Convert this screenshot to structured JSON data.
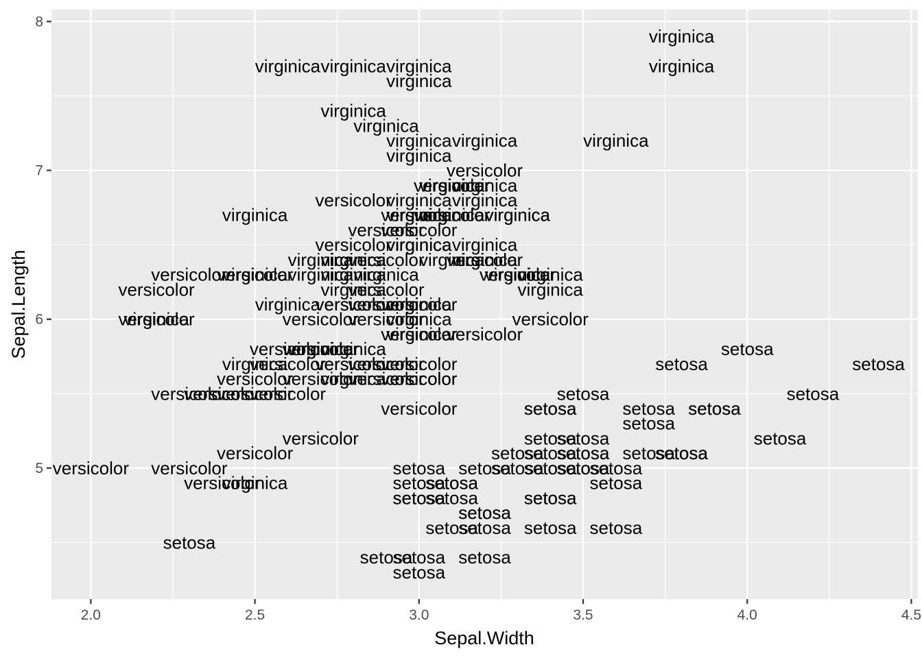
{
  "chart_data": {
    "type": "scatter",
    "title": "",
    "xlabel": "Sepal.Width",
    "ylabel": "Sepal.Length",
    "xlim": [
      1.88,
      4.52
    ],
    "ylim": [
      4.12,
      8.08
    ],
    "x_ticks": [
      2.0,
      2.5,
      3.0,
      3.5,
      4.0,
      4.5
    ],
    "x_tick_labels": [
      "2.0",
      "2.5",
      "3.0",
      "3.5",
      "4.0",
      "4.5"
    ],
    "y_ticks": [
      5,
      6,
      7,
      8
    ],
    "y_tick_labels": [
      "5",
      "6",
      "7",
      "8"
    ],
    "grid": true,
    "legend": "none",
    "marker": "text label",
    "points": [
      {
        "x": 3.5,
        "y": 5.1,
        "label": "setosa"
      },
      {
        "x": 3.0,
        "y": 4.9,
        "label": "setosa"
      },
      {
        "x": 3.2,
        "y": 4.7,
        "label": "setosa"
      },
      {
        "x": 3.1,
        "y": 4.6,
        "label": "setosa"
      },
      {
        "x": 3.6,
        "y": 5.0,
        "label": "setosa"
      },
      {
        "x": 3.9,
        "y": 5.4,
        "label": "setosa"
      },
      {
        "x": 3.4,
        "y": 4.6,
        "label": "setosa"
      },
      {
        "x": 3.4,
        "y": 5.0,
        "label": "setosa"
      },
      {
        "x": 2.9,
        "y": 4.4,
        "label": "setosa"
      },
      {
        "x": 3.1,
        "y": 4.9,
        "label": "setosa"
      },
      {
        "x": 3.7,
        "y": 5.4,
        "label": "setosa"
      },
      {
        "x": 3.4,
        "y": 4.8,
        "label": "setosa"
      },
      {
        "x": 3.0,
        "y": 4.8,
        "label": "setosa"
      },
      {
        "x": 3.0,
        "y": 4.3,
        "label": "setosa"
      },
      {
        "x": 4.0,
        "y": 5.8,
        "label": "setosa"
      },
      {
        "x": 4.4,
        "y": 5.7,
        "label": "setosa"
      },
      {
        "x": 3.9,
        "y": 5.4,
        "label": "setosa"
      },
      {
        "x": 3.5,
        "y": 5.1,
        "label": "setosa"
      },
      {
        "x": 3.8,
        "y": 5.7,
        "label": "setosa"
      },
      {
        "x": 3.8,
        "y": 5.1,
        "label": "setosa"
      },
      {
        "x": 3.4,
        "y": 5.4,
        "label": "setosa"
      },
      {
        "x": 3.7,
        "y": 5.1,
        "label": "setosa"
      },
      {
        "x": 3.6,
        "y": 4.6,
        "label": "setosa"
      },
      {
        "x": 3.3,
        "y": 5.1,
        "label": "setosa"
      },
      {
        "x": 3.4,
        "y": 4.8,
        "label": "setosa"
      },
      {
        "x": 3.0,
        "y": 5.0,
        "label": "setosa"
      },
      {
        "x": 3.4,
        "y": 5.0,
        "label": "setosa"
      },
      {
        "x": 3.5,
        "y": 5.2,
        "label": "setosa"
      },
      {
        "x": 3.4,
        "y": 5.2,
        "label": "setosa"
      },
      {
        "x": 3.2,
        "y": 4.7,
        "label": "setosa"
      },
      {
        "x": 3.1,
        "y": 4.8,
        "label": "setosa"
      },
      {
        "x": 3.4,
        "y": 5.4,
        "label": "setosa"
      },
      {
        "x": 4.1,
        "y": 5.2,
        "label": "setosa"
      },
      {
        "x": 4.2,
        "y": 5.5,
        "label": "setosa"
      },
      {
        "x": 3.1,
        "y": 4.9,
        "label": "setosa"
      },
      {
        "x": 3.2,
        "y": 5.0,
        "label": "setosa"
      },
      {
        "x": 3.5,
        "y": 5.5,
        "label": "setosa"
      },
      {
        "x": 3.6,
        "y": 4.9,
        "label": "setosa"
      },
      {
        "x": 3.0,
        "y": 4.4,
        "label": "setosa"
      },
      {
        "x": 3.4,
        "y": 5.1,
        "label": "setosa"
      },
      {
        "x": 3.5,
        "y": 5.0,
        "label": "setosa"
      },
      {
        "x": 2.3,
        "y": 4.5,
        "label": "setosa"
      },
      {
        "x": 3.2,
        "y": 4.4,
        "label": "setosa"
      },
      {
        "x": 3.5,
        "y": 5.0,
        "label": "setosa"
      },
      {
        "x": 3.8,
        "y": 5.1,
        "label": "setosa"
      },
      {
        "x": 3.0,
        "y": 4.8,
        "label": "setosa"
      },
      {
        "x": 3.8,
        "y": 5.1,
        "label": "setosa"
      },
      {
        "x": 3.2,
        "y": 4.6,
        "label": "setosa"
      },
      {
        "x": 3.7,
        "y": 5.3,
        "label": "setosa"
      },
      {
        "x": 3.3,
        "y": 5.0,
        "label": "setosa"
      },
      {
        "x": 3.2,
        "y": 7.0,
        "label": "versicolor"
      },
      {
        "x": 3.2,
        "y": 6.4,
        "label": "versicolor"
      },
      {
        "x": 3.1,
        "y": 6.9,
        "label": "versicolor"
      },
      {
        "x": 2.3,
        "y": 5.5,
        "label": "versicolor"
      },
      {
        "x": 2.8,
        "y": 6.5,
        "label": "versicolor"
      },
      {
        "x": 2.8,
        "y": 5.7,
        "label": "versicolor"
      },
      {
        "x": 3.3,
        "y": 6.3,
        "label": "versicolor"
      },
      {
        "x": 2.4,
        "y": 4.9,
        "label": "versicolor"
      },
      {
        "x": 2.9,
        "y": 6.6,
        "label": "versicolor"
      },
      {
        "x": 2.7,
        "y": 5.2,
        "label": "versicolor"
      },
      {
        "x": 2.0,
        "y": 5.0,
        "label": "versicolor"
      },
      {
        "x": 3.0,
        "y": 5.9,
        "label": "versicolor"
      },
      {
        "x": 2.2,
        "y": 6.0,
        "label": "versicolor"
      },
      {
        "x": 2.9,
        "y": 6.1,
        "label": "versicolor"
      },
      {
        "x": 2.9,
        "y": 5.6,
        "label": "versicolor"
      },
      {
        "x": 3.1,
        "y": 6.7,
        "label": "versicolor"
      },
      {
        "x": 3.0,
        "y": 5.6,
        "label": "versicolor"
      },
      {
        "x": 2.7,
        "y": 5.8,
        "label": "versicolor"
      },
      {
        "x": 2.2,
        "y": 6.2,
        "label": "versicolor"
      },
      {
        "x": 2.5,
        "y": 5.6,
        "label": "versicolor"
      },
      {
        "x": 3.2,
        "y": 5.9,
        "label": "versicolor"
      },
      {
        "x": 2.8,
        "y": 6.1,
        "label": "versicolor"
      },
      {
        "x": 2.5,
        "y": 6.3,
        "label": "versicolor"
      },
      {
        "x": 2.8,
        "y": 6.1,
        "label": "versicolor"
      },
      {
        "x": 2.9,
        "y": 6.4,
        "label": "versicolor"
      },
      {
        "x": 3.0,
        "y": 6.6,
        "label": "versicolor"
      },
      {
        "x": 2.8,
        "y": 6.8,
        "label": "versicolor"
      },
      {
        "x": 3.0,
        "y": 6.7,
        "label": "versicolor"
      },
      {
        "x": 2.9,
        "y": 6.0,
        "label": "versicolor"
      },
      {
        "x": 2.6,
        "y": 5.7,
        "label": "versicolor"
      },
      {
        "x": 2.4,
        "y": 5.5,
        "label": "versicolor"
      },
      {
        "x": 2.4,
        "y": 5.5,
        "label": "versicolor"
      },
      {
        "x": 2.7,
        "y": 5.8,
        "label": "versicolor"
      },
      {
        "x": 2.7,
        "y": 6.0,
        "label": "versicolor"
      },
      {
        "x": 3.0,
        "y": 5.4,
        "label": "versicolor"
      },
      {
        "x": 3.4,
        "y": 6.0,
        "label": "versicolor"
      },
      {
        "x": 3.1,
        "y": 6.7,
        "label": "versicolor"
      },
      {
        "x": 2.3,
        "y": 6.3,
        "label": "versicolor"
      },
      {
        "x": 3.0,
        "y": 5.6,
        "label": "versicolor"
      },
      {
        "x": 2.5,
        "y": 5.5,
        "label": "versicolor"
      },
      {
        "x": 2.6,
        "y": 5.5,
        "label": "versicolor"
      },
      {
        "x": 3.0,
        "y": 6.1,
        "label": "versicolor"
      },
      {
        "x": 2.6,
        "y": 5.8,
        "label": "versicolor"
      },
      {
        "x": 2.3,
        "y": 5.0,
        "label": "versicolor"
      },
      {
        "x": 2.7,
        "y": 5.6,
        "label": "versicolor"
      },
      {
        "x": 3.0,
        "y": 5.7,
        "label": "versicolor"
      },
      {
        "x": 2.9,
        "y": 5.7,
        "label": "versicolor"
      },
      {
        "x": 2.9,
        "y": 6.2,
        "label": "versicolor"
      },
      {
        "x": 2.5,
        "y": 5.1,
        "label": "versicolor"
      },
      {
        "x": 2.8,
        "y": 5.7,
        "label": "versicolor"
      },
      {
        "x": 3.3,
        "y": 6.3,
        "label": "virginica"
      },
      {
        "x": 2.7,
        "y": 5.8,
        "label": "virginica"
      },
      {
        "x": 3.0,
        "y": 7.1,
        "label": "virginica"
      },
      {
        "x": 2.9,
        "y": 6.3,
        "label": "virginica"
      },
      {
        "x": 3.0,
        "y": 6.5,
        "label": "virginica"
      },
      {
        "x": 3.0,
        "y": 7.6,
        "label": "virginica"
      },
      {
        "x": 2.5,
        "y": 4.9,
        "label": "virginica"
      },
      {
        "x": 2.9,
        "y": 7.3,
        "label": "virginica"
      },
      {
        "x": 2.5,
        "y": 6.7,
        "label": "virginica"
      },
      {
        "x": 3.6,
        "y": 7.2,
        "label": "virginica"
      },
      {
        "x": 3.2,
        "y": 6.5,
        "label": "virginica"
      },
      {
        "x": 2.7,
        "y": 6.4,
        "label": "virginica"
      },
      {
        "x": 3.0,
        "y": 6.8,
        "label": "virginica"
      },
      {
        "x": 2.5,
        "y": 5.7,
        "label": "virginica"
      },
      {
        "x": 2.8,
        "y": 5.8,
        "label": "virginica"
      },
      {
        "x": 3.2,
        "y": 6.4,
        "label": "virginica"
      },
      {
        "x": 3.0,
        "y": 6.5,
        "label": "virginica"
      },
      {
        "x": 3.8,
        "y": 7.7,
        "label": "virginica"
      },
      {
        "x": 2.6,
        "y": 7.7,
        "label": "virginica"
      },
      {
        "x": 2.2,
        "y": 6.0,
        "label": "virginica"
      },
      {
        "x": 3.2,
        "y": 6.9,
        "label": "virginica"
      },
      {
        "x": 2.8,
        "y": 5.6,
        "label": "virginica"
      },
      {
        "x": 2.8,
        "y": 7.7,
        "label": "virginica"
      },
      {
        "x": 2.7,
        "y": 6.3,
        "label": "virginica"
      },
      {
        "x": 3.3,
        "y": 6.7,
        "label": "virginica"
      },
      {
        "x": 3.2,
        "y": 7.2,
        "label": "virginica"
      },
      {
        "x": 2.8,
        "y": 6.2,
        "label": "virginica"
      },
      {
        "x": 3.0,
        "y": 6.1,
        "label": "virginica"
      },
      {
        "x": 2.8,
        "y": 6.4,
        "label": "virginica"
      },
      {
        "x": 3.0,
        "y": 7.2,
        "label": "virginica"
      },
      {
        "x": 2.8,
        "y": 7.4,
        "label": "virginica"
      },
      {
        "x": 3.8,
        "y": 7.9,
        "label": "virginica"
      },
      {
        "x": 2.8,
        "y": 6.4,
        "label": "virginica"
      },
      {
        "x": 2.8,
        "y": 6.3,
        "label": "virginica"
      },
      {
        "x": 2.6,
        "y": 6.1,
        "label": "virginica"
      },
      {
        "x": 3.0,
        "y": 7.7,
        "label": "virginica"
      },
      {
        "x": 3.4,
        "y": 6.3,
        "label": "virginica"
      },
      {
        "x": 3.1,
        "y": 6.4,
        "label": "virginica"
      },
      {
        "x": 3.0,
        "y": 6.0,
        "label": "virginica"
      },
      {
        "x": 3.1,
        "y": 6.9,
        "label": "virginica"
      },
      {
        "x": 3.1,
        "y": 6.7,
        "label": "virginica"
      },
      {
        "x": 3.1,
        "y": 6.9,
        "label": "virginica"
      },
      {
        "x": 2.7,
        "y": 5.8,
        "label": "virginica"
      },
      {
        "x": 3.2,
        "y": 6.8,
        "label": "virginica"
      },
      {
        "x": 3.3,
        "y": 6.7,
        "label": "virginica"
      },
      {
        "x": 3.0,
        "y": 6.7,
        "label": "virginica"
      },
      {
        "x": 2.5,
        "y": 6.3,
        "label": "virginica"
      },
      {
        "x": 3.0,
        "y": 6.5,
        "label": "virginica"
      },
      {
        "x": 3.4,
        "y": 6.2,
        "label": "virginica"
      },
      {
        "x": 3.0,
        "y": 5.9,
        "label": "virginica"
      }
    ]
  }
}
